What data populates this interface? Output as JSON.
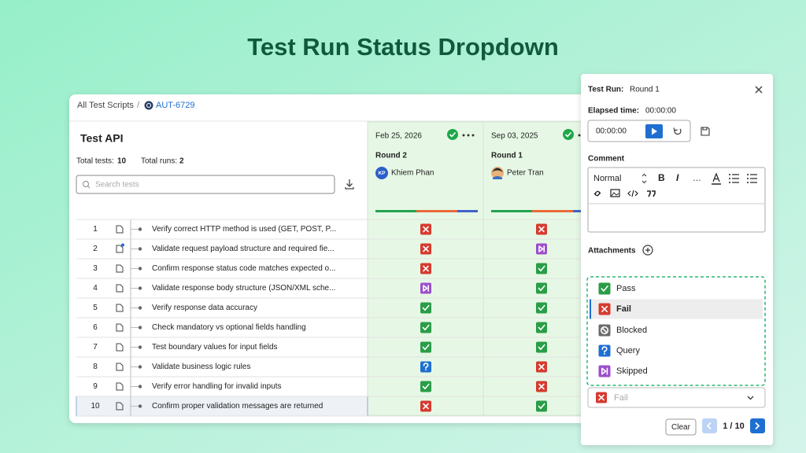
{
  "header": {
    "title": "Test Run Status Dropdown"
  },
  "breadcrumb": {
    "root": "All Test Scripts",
    "separator": "/",
    "current": "AUT-6729"
  },
  "suite": {
    "title": "Test API",
    "total_tests_label": "Total tests:",
    "total_tests": 10,
    "total_runs_label": "Total runs:",
    "total_runs": 2,
    "search_placeholder": "Search tests"
  },
  "runs": [
    {
      "date": "Feb 25, 2026",
      "round": "Round 2",
      "initials": "KP",
      "user": "Khiem Phan"
    },
    {
      "date": "Sep 03, 2025",
      "round": "Round 1",
      "user": "Peter Tran"
    }
  ],
  "status_options": [
    {
      "name": "Pass",
      "color": "#2a9d47"
    },
    {
      "name": "Fail",
      "color": "#d63a2f"
    },
    {
      "name": "Blocked",
      "color": "#6b6b6b"
    },
    {
      "name": "Query",
      "color": "#1f6fd1"
    },
    {
      "name": "Skipped",
      "color": "#9c4fcb"
    }
  ],
  "rows": [
    {
      "number": 1,
      "title": "Verify correct HTTP method is used (GET, POST, P...",
      "statuses": [
        1,
        1
      ]
    },
    {
      "number": 2,
      "title": "Validate request payload structure and required fie...",
      "statuses": [
        1,
        4
      ]
    },
    {
      "number": 3,
      "title": "Confirm response status code matches expected o...",
      "statuses": [
        1,
        0
      ]
    },
    {
      "number": 4,
      "title": "Validate response body structure (JSON/XML sche...",
      "statuses": [
        4,
        0
      ]
    },
    {
      "number": 5,
      "title": "Verify response data accuracy",
      "statuses": [
        0,
        0
      ]
    },
    {
      "number": 6,
      "title": "Check mandatory vs optional fields handling",
      "statuses": [
        0,
        0
      ]
    },
    {
      "number": 7,
      "title": "Test boundary values for input fields",
      "statuses": [
        0,
        0
      ]
    },
    {
      "number": 8,
      "title": "Validate business logic rules",
      "statuses": [
        3,
        1
      ]
    },
    {
      "number": 9,
      "title": "Verify error handling for invalid inputs",
      "statuses": [
        0,
        1
      ]
    },
    {
      "number": 10,
      "title": "Confirm proper validation messages are returned",
      "statuses": [
        1,
        0
      ]
    }
  ],
  "panel": {
    "test_run_label": "Test Run:",
    "test_run": "Round 1",
    "elapsed_label": "Elapsed time:",
    "elapsed": "00:00:00",
    "timer": "00:00:00",
    "comment_label": "Comment",
    "toolbar": [
      "Normal",
      "B",
      "I",
      "…"
    ],
    "attachments_label": "Attachments",
    "selected": 1,
    "clear": "Clear",
    "pagination": "1 / 10"
  }
}
